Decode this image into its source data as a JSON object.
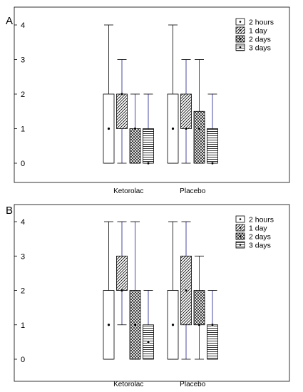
{
  "chart_data": [
    {
      "panel": "A",
      "type": "box",
      "categories": [
        "Ketorolac",
        "Placebo"
      ],
      "ylim": [
        0,
        4
      ],
      "yticks": [
        "0",
        "1",
        "2",
        "3",
        "4"
      ],
      "legend_position": "top-right",
      "series": [
        {
          "name": "2 hours",
          "pattern": "plain",
          "boxes": [
            {
              "min": 0,
              "q1": 0,
              "median": 1,
              "q3": 2,
              "max": 4
            },
            {
              "min": 0,
              "q1": 0,
              "median": 1,
              "q3": 2,
              "max": 4
            }
          ]
        },
        {
          "name": "1 day",
          "pattern": "diagonal",
          "boxes": [
            {
              "min": 0,
              "q1": 1,
              "median": 2,
              "q3": 2,
              "max": 3
            },
            {
              "min": 0,
              "q1": 1,
              "median": 1,
              "q3": 2,
              "max": 3
            }
          ]
        },
        {
          "name": "2 days",
          "pattern": "crosshatch",
          "boxes": [
            {
              "min": 0,
              "q1": 0,
              "median": 1,
              "q3": 1,
              "max": 2
            },
            {
              "min": 0,
              "q1": 0,
              "median": 1,
              "q3": 1.5,
              "max": 3
            }
          ]
        },
        {
          "name": "3 days",
          "pattern": "horizontal",
          "boxes": [
            {
              "min": 0,
              "q1": 0,
              "median": 0,
              "q3": 1,
              "max": 2
            },
            {
              "min": 0,
              "q1": 0,
              "median": 0,
              "q3": 1,
              "max": 2
            }
          ]
        }
      ]
    },
    {
      "panel": "B",
      "type": "box",
      "categories": [
        "Ketorolac",
        "Placebo"
      ],
      "ylim": [
        0,
        4
      ],
      "yticks": [
        "0",
        "1",
        "2",
        "3",
        "4"
      ],
      "legend_position": "top-right",
      "series": [
        {
          "name": "2 hours",
          "pattern": "plain",
          "boxes": [
            {
              "min": 0,
              "q1": 0,
              "median": 1,
              "q3": 2,
              "max": 4
            },
            {
              "min": 0,
              "q1": 0,
              "median": 1,
              "q3": 2,
              "max": 4
            }
          ]
        },
        {
          "name": "1 day",
          "pattern": "diagonal",
          "boxes": [
            {
              "min": 1,
              "q1": 2,
              "median": 2,
              "q3": 3,
              "max": 4
            },
            {
              "min": 0,
              "q1": 1,
              "median": 2,
              "q3": 3,
              "max": 4
            }
          ]
        },
        {
          "name": "2 days",
          "pattern": "crosshatch",
          "boxes": [
            {
              "min": 0,
              "q1": 0,
              "median": 1,
              "q3": 2,
              "max": 4
            },
            {
              "min": 0,
              "q1": 1,
              "median": 1,
              "q3": 2,
              "max": 3
            }
          ]
        },
        {
          "name": "3 days",
          "pattern": "horizontal",
          "boxes": [
            {
              "min": 0,
              "q1": 0,
              "median": 0.5,
              "q3": 1,
              "max": 2
            },
            {
              "min": 0,
              "q1": 0,
              "median": 1,
              "q3": 1,
              "max": 2
            }
          ]
        }
      ]
    }
  ]
}
